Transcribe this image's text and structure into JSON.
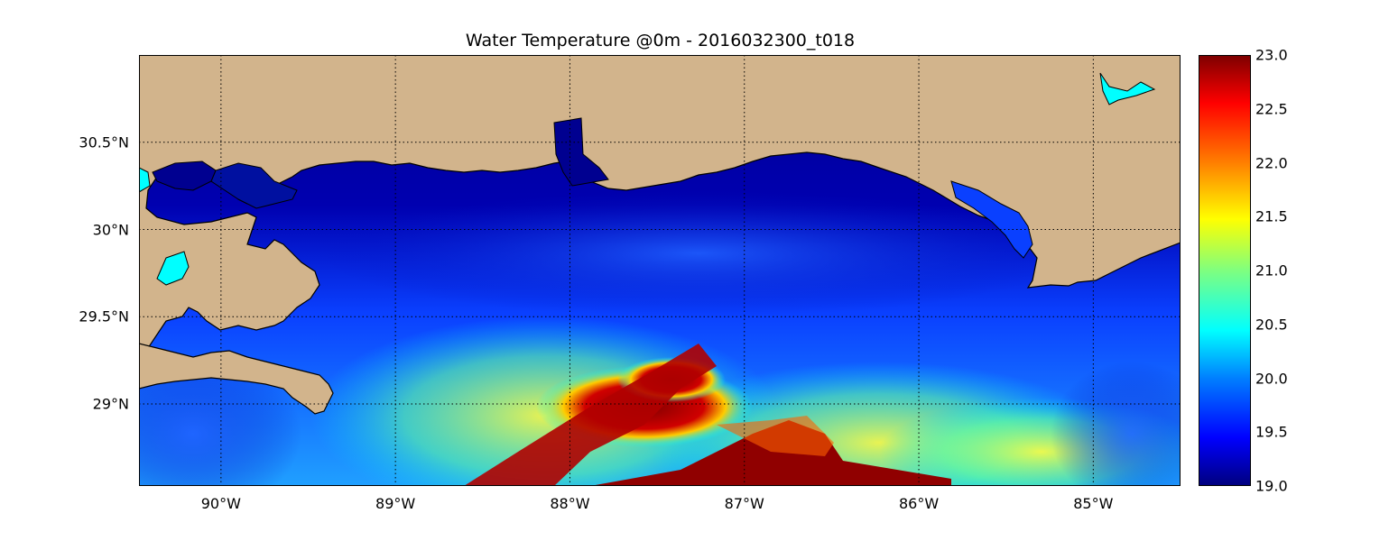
{
  "title": "Water Temperature @0m - 2016032300_t018",
  "map": {
    "lat_ticks": [
      {
        "value": 30.5,
        "label": "30.5°N"
      },
      {
        "value": 30.0,
        "label": "30°N"
      },
      {
        "value": 29.5,
        "label": "29.5°N"
      },
      {
        "value": 29.0,
        "label": "29°N"
      }
    ],
    "lon_ticks": [
      {
        "value": -90,
        "label": "90°W"
      },
      {
        "value": -89,
        "label": "89°W"
      },
      {
        "value": -88,
        "label": "88°W"
      },
      {
        "value": -87,
        "label": "87°W"
      },
      {
        "value": -86,
        "label": "86°W"
      },
      {
        "value": -85,
        "label": "85°W"
      }
    ],
    "lon_range": [
      -90.47,
      -84.5
    ],
    "lat_range": [
      28.53,
      31.0
    ],
    "grid": "dotted",
    "colors": {
      "land": "#d2b48c",
      "cold": "#00008b",
      "warm": "#8b0000"
    }
  },
  "colorbar": {
    "colormap": "jet",
    "min": 19.0,
    "max": 23.0,
    "ticks": [
      "23.0",
      "22.5",
      "22.0",
      "21.5",
      "21.0",
      "20.5",
      "20.0",
      "19.5",
      "19.0"
    ]
  }
}
